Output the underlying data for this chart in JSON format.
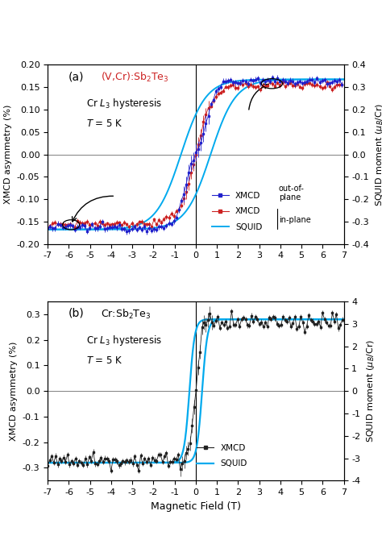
{
  "panel_a": {
    "title_red": "(V,Cr):Sb$_2$Te$_3$",
    "subtitle1": "Cr $L_3$ hysteresis",
    "subtitle2": "$T$ = 5 K",
    "xlim": [
      -7,
      7
    ],
    "ylim_left": [
      -0.2,
      0.2
    ],
    "ylim_right": [
      -0.4,
      0.4
    ],
    "xlabel": "Magnetic field (T)",
    "ylabel_left": "XMCD asymmetry (%)",
    "ylabel_right": "SQUID moment ($\\mu_B$/Cr)",
    "yticks_left": [
      -0.2,
      -0.15,
      -0.1,
      -0.05,
      0.0,
      0.05,
      0.1,
      0.15,
      0.2
    ],
    "yticks_right": [
      -0.4,
      -0.3,
      -0.2,
      -0.1,
      0.0,
      0.1,
      0.2,
      0.3,
      0.4
    ],
    "color_oop": "#2222CC",
    "color_ip": "#CC2222",
    "color_squid": "#00AAEE"
  },
  "panel_b": {
    "title_black": "Cr:Sb$_2$Te$_3$",
    "subtitle1": "Cr $L_3$ hysteresis",
    "subtitle2": "$T$ = 5 K",
    "xlim": [
      -7,
      7
    ],
    "ylim_left": [
      -0.35,
      0.35
    ],
    "ylim_right": [
      -4,
      4
    ],
    "xlabel": "Magnetic Field (T)",
    "ylabel_left": "XMCD asymmetry (%)",
    "ylabel_right": "SQUID moment ($\\mu_B$/Cr)",
    "yticks_left": [
      -0.3,
      -0.2,
      -0.1,
      0.0,
      0.1,
      0.2,
      0.3
    ],
    "yticks_right": [
      -4,
      -3,
      -2,
      -1,
      0,
      1,
      2,
      3,
      4
    ],
    "color_xmcd": "#222222",
    "color_squid": "#00AAEE"
  }
}
